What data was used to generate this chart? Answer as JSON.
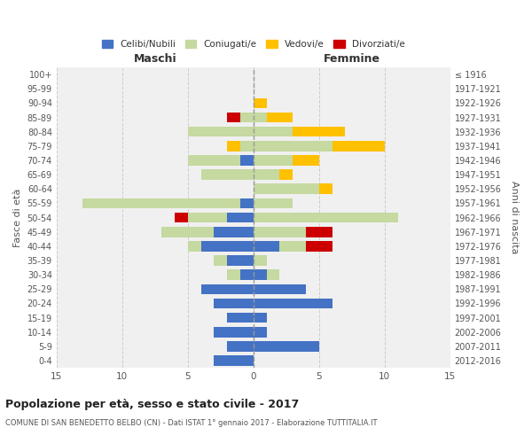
{
  "age_groups": [
    "0-4",
    "5-9",
    "10-14",
    "15-19",
    "20-24",
    "25-29",
    "30-34",
    "35-39",
    "40-44",
    "45-49",
    "50-54",
    "55-59",
    "60-64",
    "65-69",
    "70-74",
    "75-79",
    "80-84",
    "85-89",
    "90-94",
    "95-99",
    "100+"
  ],
  "birth_years": [
    "2012-2016",
    "2007-2011",
    "2002-2006",
    "1997-2001",
    "1992-1996",
    "1987-1991",
    "1982-1986",
    "1977-1981",
    "1972-1976",
    "1967-1971",
    "1962-1966",
    "1957-1961",
    "1952-1956",
    "1947-1951",
    "1942-1946",
    "1937-1941",
    "1932-1936",
    "1927-1931",
    "1922-1926",
    "1917-1921",
    "≤ 1916"
  ],
  "maschi": {
    "celibi": [
      3,
      2,
      3,
      2,
      3,
      4,
      1,
      2,
      4,
      3,
      2,
      1,
      0,
      0,
      1,
      0,
      0,
      0,
      0,
      0,
      0
    ],
    "coniugati": [
      0,
      0,
      0,
      0,
      0,
      0,
      1,
      1,
      1,
      4,
      3,
      12,
      0,
      4,
      4,
      1,
      5,
      1,
      0,
      0,
      0
    ],
    "vedovi": [
      0,
      0,
      0,
      0,
      0,
      0,
      0,
      0,
      0,
      0,
      0,
      0,
      0,
      0,
      0,
      1,
      0,
      0,
      0,
      0,
      0
    ],
    "divorziati": [
      0,
      0,
      0,
      0,
      0,
      0,
      0,
      0,
      0,
      0,
      1,
      0,
      0,
      0,
      0,
      0,
      0,
      1,
      0,
      0,
      0
    ]
  },
  "femmine": {
    "nubili": [
      0,
      5,
      1,
      1,
      6,
      4,
      1,
      0,
      2,
      0,
      0,
      0,
      0,
      0,
      0,
      0,
      0,
      0,
      0,
      0,
      0
    ],
    "coniugate": [
      0,
      0,
      0,
      0,
      0,
      0,
      1,
      1,
      2,
      4,
      11,
      3,
      5,
      2,
      3,
      6,
      3,
      1,
      0,
      0,
      0
    ],
    "vedove": [
      0,
      0,
      0,
      0,
      0,
      0,
      0,
      0,
      0,
      0,
      0,
      0,
      1,
      1,
      2,
      4,
      4,
      2,
      1,
      0,
      0
    ],
    "divorziate": [
      0,
      0,
      0,
      0,
      0,
      0,
      0,
      0,
      2,
      2,
      0,
      0,
      0,
      0,
      0,
      0,
      0,
      0,
      0,
      0,
      0
    ]
  },
  "color_celibi": "#4472c4",
  "color_coniugati": "#c5d9a0",
  "color_vedovi": "#ffc000",
  "color_divorziati": "#cc0000",
  "xlim": 15,
  "title": "Popolazione per età, sesso e stato civile - 2017",
  "subtitle": "COMUNE DI SAN BENEDETTO BELBO (CN) - Dati ISTAT 1° gennaio 2017 - Elaborazione TUTTITALIA.IT",
  "ylabel_left": "Fasce di età",
  "ylabel_right": "Anni di nascita",
  "xlabel_maschi": "Maschi",
  "xlabel_femmine": "Femmine",
  "bg_color": "#f0f0f0",
  "grid_color": "#cccccc"
}
